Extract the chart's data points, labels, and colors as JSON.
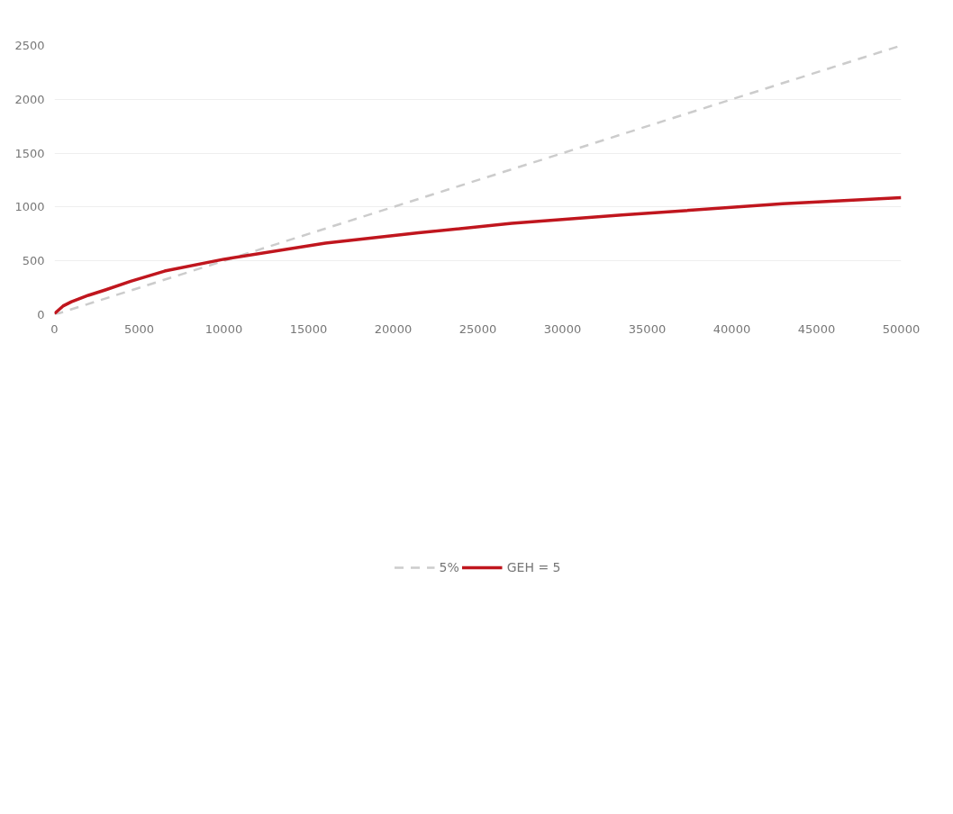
{
  "chart_data": {
    "type": "line",
    "series": [
      {
        "name": "5%",
        "color": "#cccccc",
        "line_style": "dashed",
        "x": [
          0,
          50000
        ],
        "values": [
          0,
          2500
        ]
      },
      {
        "name": "GEH = 5",
        "color": "#c0161e",
        "line_style": "solid",
        "x": [
          0,
          500,
          1000,
          2000,
          3000,
          4500,
          6500,
          10000,
          16000,
          21500,
          27000,
          33500,
          43000,
          50000
        ],
        "values": [
          10,
          80,
          120,
          180,
          230,
          310,
          405,
          515,
          665,
          760,
          848,
          925,
          1030,
          1087
        ]
      }
    ],
    "xlim": [
      0,
      50000
    ],
    "xticks": [
      0,
      5000,
      10000,
      15000,
      20000,
      25000,
      30000,
      35000,
      40000,
      45000,
      50000
    ],
    "ylim": [
      0,
      2500
    ],
    "yticks": [
      0,
      500,
      1000,
      1500,
      2000,
      2500
    ],
    "grid": "y",
    "legend": "bottom",
    "marker": "none"
  }
}
